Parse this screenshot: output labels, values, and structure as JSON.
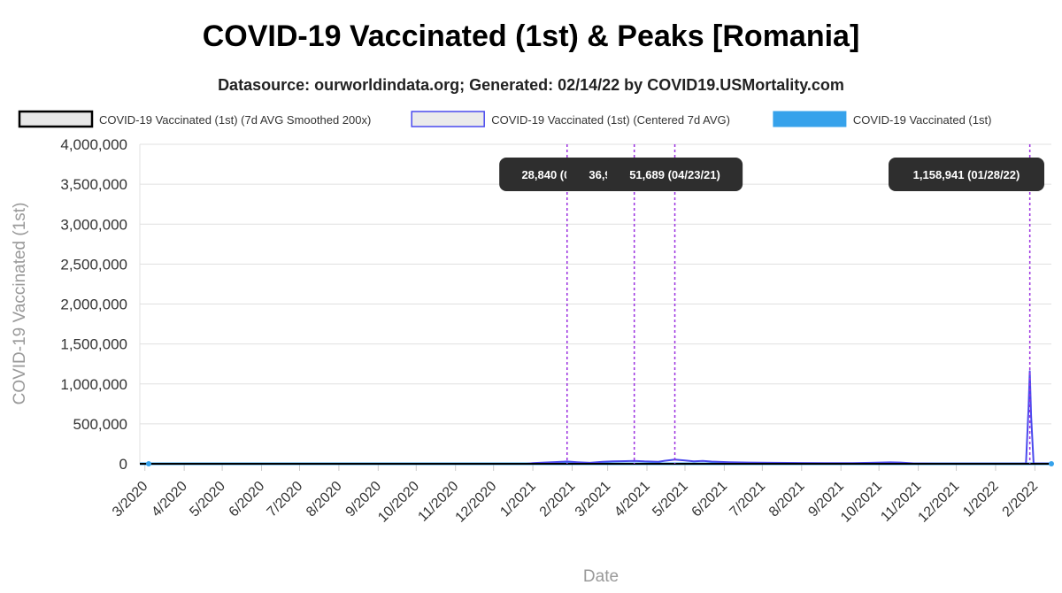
{
  "title": "COVID-19 Vaccinated (1st) & Peaks [Romania]",
  "subtitle": "Datasource: ourworldindata.org; Generated: 02/14/22 by COVID19.USMortality.com",
  "colors": {
    "smoothed": "#000000",
    "centered": "#4a4aee",
    "raw": "#36a2eb",
    "peak_line": "#9b30e0",
    "annotation_bg": "#2e2e2e",
    "grid": "#e0e0e0"
  },
  "chart_data": {
    "type": "line",
    "title": "COVID-19 Vaccinated (1st) & Peaks [Romania]",
    "xlabel": "Date",
    "ylabel": "COVID-19 Vaccinated (1st)",
    "ylim": [
      0,
      4000000
    ],
    "y_ticks": [
      "0",
      "500,000",
      "1,000,000",
      "1,500,000",
      "2,000,000",
      "2,500,000",
      "3,000,000",
      "3,500,000",
      "4,000,000"
    ],
    "x_ticks": [
      "3/2020",
      "4/2020",
      "5/2020",
      "6/2020",
      "7/2020",
      "8/2020",
      "9/2020",
      "10/2020",
      "11/2020",
      "12/2020",
      "1/2021",
      "2/2021",
      "3/2021",
      "4/2021",
      "5/2021",
      "6/2021",
      "7/2021",
      "8/2021",
      "9/2021",
      "10/2021",
      "11/2021",
      "12/2021",
      "1/2022",
      "2/2022"
    ],
    "xlim": [
      "2020-02-26",
      "2022-02-14"
    ],
    "grid": true,
    "legend_position": "top",
    "series": [
      {
        "name": "COVID-19 Vaccinated (1st) (7d AVG Smoothed 200x)",
        "style": "smoothed",
        "points": [
          [
            "2020-02-26",
            0
          ],
          [
            "2022-02-14",
            0
          ]
        ]
      },
      {
        "name": "COVID-19 Vaccinated (1st) (Centered 7d AVG)",
        "style": "centered",
        "points": [
          [
            "2020-02-26",
            0
          ],
          [
            "2020-12-27",
            0
          ],
          [
            "2021-01-01",
            8000
          ],
          [
            "2021-01-10",
            15000
          ],
          [
            "2021-01-20",
            22000
          ],
          [
            "2021-01-28",
            28840
          ],
          [
            "2021-02-05",
            20000
          ],
          [
            "2021-02-15",
            12000
          ],
          [
            "2021-02-25",
            25000
          ],
          [
            "2021-03-05",
            30000
          ],
          [
            "2021-03-15",
            33000
          ],
          [
            "2021-03-22",
            36980
          ],
          [
            "2021-03-30",
            30000
          ],
          [
            "2021-04-10",
            26000
          ],
          [
            "2021-04-15",
            38000
          ],
          [
            "2021-04-23",
            51689
          ],
          [
            "2021-05-01",
            42000
          ],
          [
            "2021-05-08",
            30000
          ],
          [
            "2021-05-15",
            35000
          ],
          [
            "2021-05-22",
            28000
          ],
          [
            "2021-06-05",
            20000
          ],
          [
            "2021-06-20",
            15000
          ],
          [
            "2021-07-10",
            12000
          ],
          [
            "2021-08-01",
            10000
          ],
          [
            "2021-08-20",
            8000
          ],
          [
            "2021-09-10",
            8000
          ],
          [
            "2021-09-25",
            12000
          ],
          [
            "2021-10-10",
            18000
          ],
          [
            "2021-10-18",
            15000
          ],
          [
            "2021-10-28",
            6000
          ],
          [
            "2021-11-15",
            3000
          ],
          [
            "2021-12-15",
            2000
          ],
          [
            "2022-01-20",
            2000
          ],
          [
            "2022-01-25",
            5000
          ],
          [
            "2022-01-27",
            700000
          ],
          [
            "2022-01-28",
            1158941
          ],
          [
            "2022-01-29",
            600000
          ],
          [
            "2022-01-31",
            5000
          ],
          [
            "2022-02-14",
            2000
          ]
        ]
      },
      {
        "name": "COVID-19 Vaccinated (1st)",
        "style": "raw",
        "points": [
          [
            "2020-02-26",
            0
          ],
          [
            "2022-02-14",
            0
          ]
        ]
      }
    ],
    "peaks": [
      {
        "date": "2021-01-28",
        "label": "28,840 (01/28/21)"
      },
      {
        "date": "2021-03-22",
        "label": "36,980 (03/22/21)"
      },
      {
        "date": "2021-04-23",
        "label": "51,689 (04/23/21)"
      },
      {
        "date": "2022-01-28",
        "label": "1,158,941 (01/28/22)"
      }
    ]
  }
}
